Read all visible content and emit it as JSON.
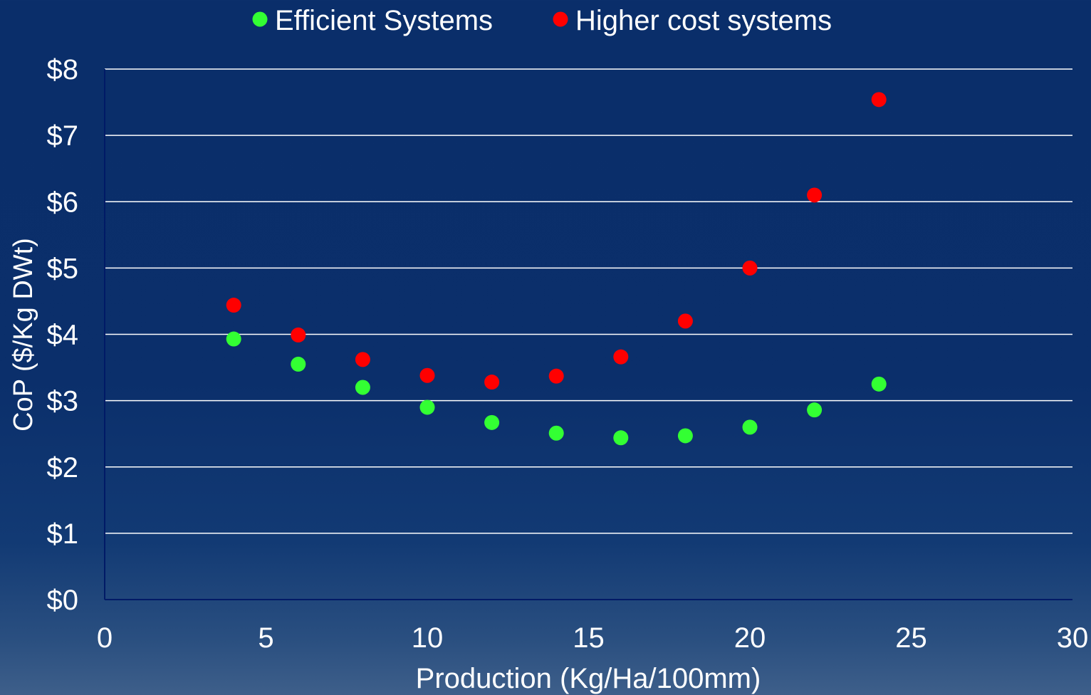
{
  "chart_data": {
    "type": "scatter",
    "title": "",
    "xlabel": "Production (Kg/Ha/100mm)",
    "ylabel": "CoP ($/Kg DWt)",
    "xlim": [
      0,
      30
    ],
    "ylim": [
      0,
      8
    ],
    "x_ticks": [
      "0",
      "5",
      "10",
      "15",
      "20",
      "25",
      "30"
    ],
    "y_ticks": [
      "$0",
      "$1",
      "$2",
      "$3",
      "$4",
      "$5",
      "$6",
      "$7",
      "$8"
    ],
    "grid": "horizontal",
    "legend_position": "top",
    "series": [
      {
        "name": "Efficient Systems",
        "color": "#33ff33",
        "x": [
          4,
          6,
          8,
          10,
          12,
          14,
          16,
          18,
          20,
          22,
          24
        ],
        "y": [
          3.93,
          3.55,
          3.2,
          2.9,
          2.67,
          2.51,
          2.44,
          2.47,
          2.6,
          2.86,
          3.25
        ]
      },
      {
        "name": "Higher cost systems",
        "color": "#ff0000",
        "x": [
          4,
          6,
          8,
          10,
          12,
          14,
          16,
          18,
          20,
          22,
          24
        ],
        "y": [
          4.44,
          3.99,
          3.62,
          3.38,
          3.28,
          3.37,
          3.66,
          4.2,
          5.0,
          6.1,
          7.54
        ]
      }
    ]
  }
}
